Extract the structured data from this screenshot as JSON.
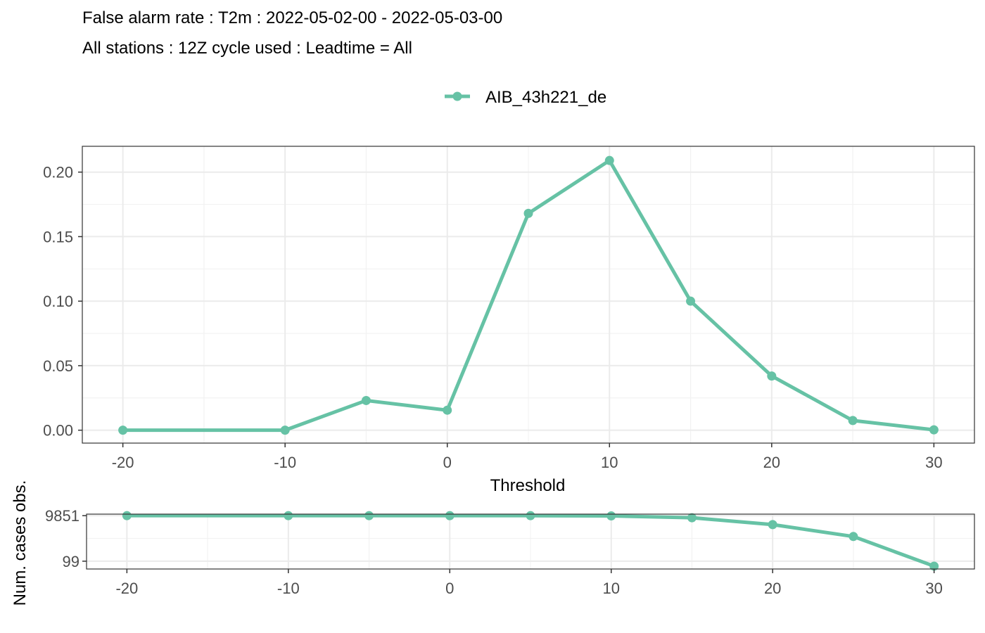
{
  "title": "False alarm rate : T2m : 2022-05-02-00 - 2022-05-03-00",
  "subtitle": "All stations : 12Z cycle used : Leadtime = All",
  "legend": {
    "label": "AIB_43h221_de",
    "position": "top"
  },
  "colors": {
    "series": "#66c2a5"
  },
  "chart_data": [
    {
      "type": "line",
      "xlabel": "Threshold",
      "ylabel": "",
      "x": [
        -20,
        -10,
        -5,
        0,
        5,
        10,
        15,
        20,
        25,
        30
      ],
      "series": [
        {
          "name": "AIB_43h221_de",
          "values": [
            0.0,
            0.0,
            0.023,
            0.0155,
            0.168,
            0.209,
            0.1,
            0.042,
            0.0075,
            0.0003
          ]
        }
      ],
      "xlim": [
        -22.5,
        32.5
      ],
      "ylim": [
        -0.01,
        0.22
      ],
      "x_ticks": [
        "-20",
        "-10",
        "0",
        "10",
        "20",
        "30"
      ],
      "y_ticks": [
        "0.00",
        "0.05",
        "0.10",
        "0.15",
        "0.20"
      ],
      "grid": true
    },
    {
      "type": "line",
      "xlabel": "",
      "ylabel": "Num. cases obs.",
      "x": [
        -20,
        -10,
        -5,
        0,
        5,
        10,
        15,
        20,
        25,
        30
      ],
      "series": [
        {
          "name": "AIB_43h221_de",
          "values": [
            9851,
            9851,
            9851,
            9851,
            9851,
            9600,
            8000,
            4000,
            1200,
            60
          ]
        }
      ],
      "xlim": [
        -22.5,
        32.5
      ],
      "y_scale": "log",
      "x_ticks": [
        "-20",
        "-10",
        "0",
        "10",
        "20",
        "30"
      ],
      "y_ticks": [
        "9851",
        "99"
      ],
      "grid": true
    }
  ]
}
